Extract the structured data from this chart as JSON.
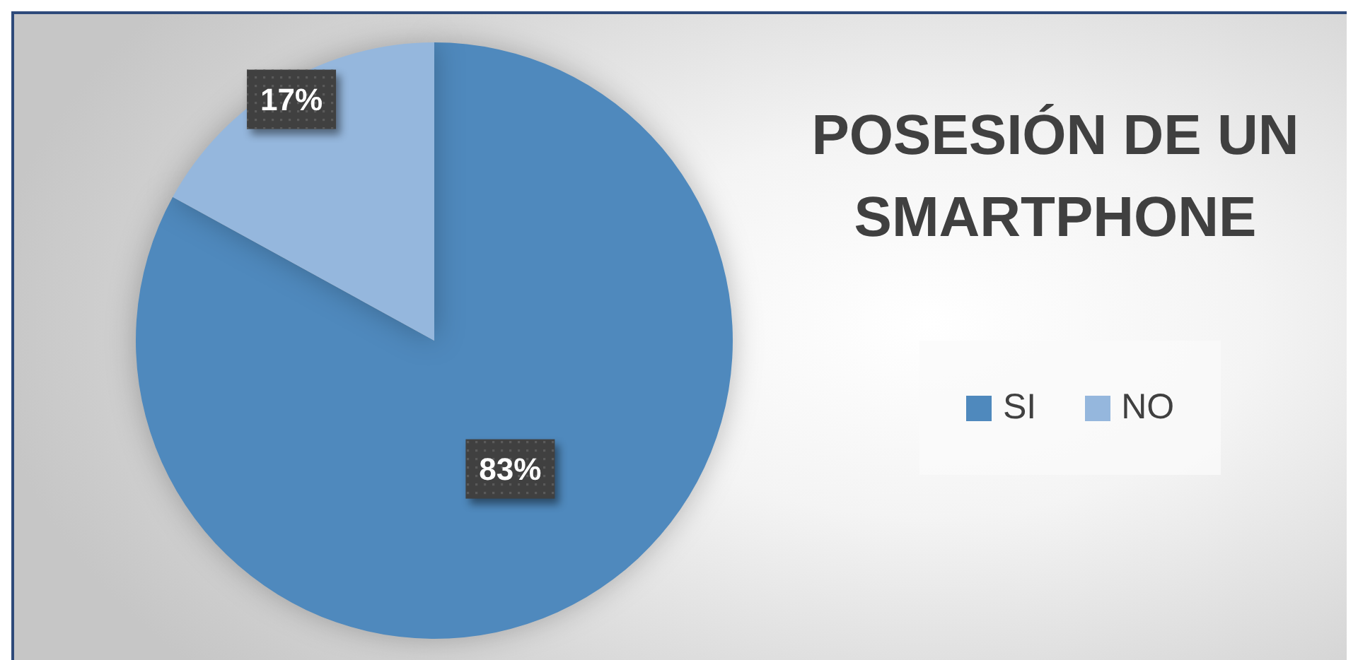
{
  "chart_data": {
    "type": "pie",
    "title": "POSESIÓN DE UN SMARTPHONE",
    "categories": [
      "SI",
      "NO"
    ],
    "values": [
      83,
      17
    ],
    "colors": [
      "#4f89bd",
      "#95b7dd"
    ],
    "value_labels": [
      "83%",
      "17%"
    ],
    "legend": "right"
  }
}
